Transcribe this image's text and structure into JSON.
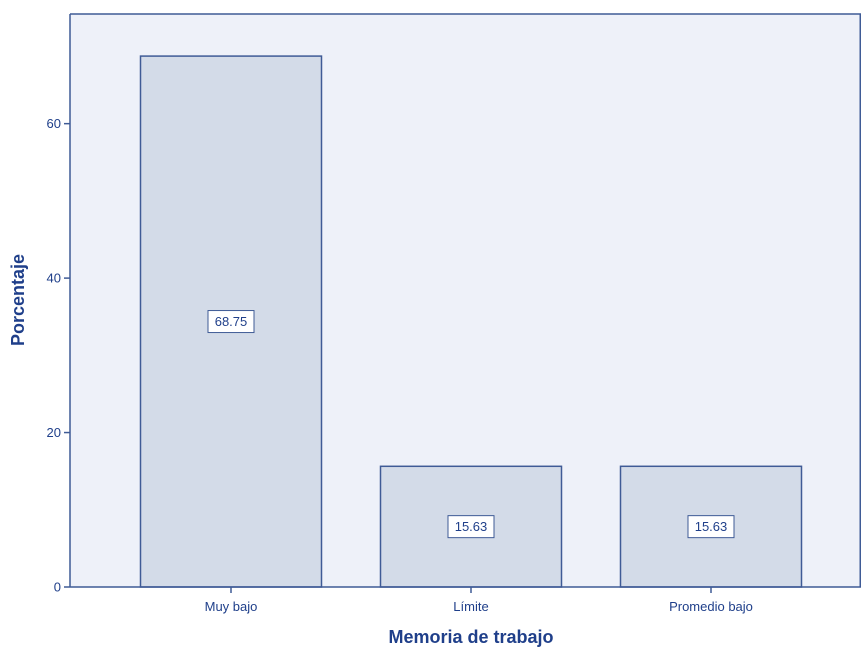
{
  "chart_data": {
    "type": "bar",
    "title": "",
    "xlabel": "Memoria de trabajo",
    "ylabel": "Porcentaje",
    "categories": [
      "Muy bajo",
      "Límite",
      "Promedio bajo"
    ],
    "values": [
      68.75,
      15.63,
      15.63
    ],
    "data_labels": [
      "68.75",
      "15.63",
      "15.63"
    ],
    "yticks": [
      0,
      20,
      40,
      60
    ],
    "ytick_labels": [
      "0",
      "20",
      "40",
      "60"
    ],
    "ylim": [
      0,
      74.2
    ],
    "grid": false,
    "legend": "none",
    "colors": {
      "plot_background": "#eef1f9",
      "bar_fill": "#d3dbe8",
      "bar_stroke": "#3f5b96",
      "axis": "#3f5b96",
      "text": "#1f3f8a",
      "label_box_fill": "#ffffff"
    }
  }
}
